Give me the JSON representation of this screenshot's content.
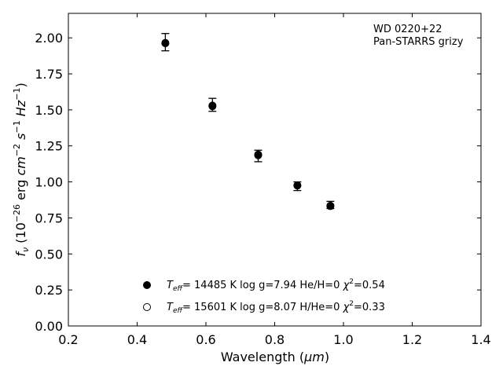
{
  "chart_data": {
    "type": "scatter",
    "xlabel_prefix": "Wavelength (",
    "xlabel_unit": "μm",
    "xlabel_suffix": ")",
    "ylabel_parts": [
      "f",
      "ν",
      " (10",
      "−26",
      " erg ",
      "cm",
      "−2",
      " ",
      "s",
      "−1",
      " ",
      "Hz",
      "−1",
      ")"
    ],
    "xlim": [
      0.2,
      1.4
    ],
    "ylim": [
      0.0,
      2.17
    ],
    "xticks": [
      0.2,
      0.4,
      0.6,
      0.8,
      1.0,
      1.2,
      1.4
    ],
    "xtick_labels": [
      "0.2",
      "0.4",
      "0.6",
      "0.8",
      "1.0",
      "1.2",
      "1.4"
    ],
    "yticks": [
      0.0,
      0.25,
      0.5,
      0.75,
      1.0,
      1.25,
      1.5,
      1.75,
      2.0
    ],
    "ytick_labels": [
      "0.00",
      "0.25",
      "0.50",
      "0.75",
      "1.00",
      "1.25",
      "1.50",
      "1.75",
      "2.00"
    ],
    "grid": false,
    "annotation_lines": [
      "WD 0220+22",
      "Pan-STARRS grizy"
    ],
    "observed": {
      "x": [
        0.482,
        0.619,
        0.752,
        0.866,
        0.962
      ],
      "y": [
        1.97,
        1.535,
        1.18,
        0.97,
        0.84
      ],
      "err": [
        0.06,
        0.045,
        0.04,
        0.03,
        0.025
      ]
    },
    "series": [
      {
        "name": "Teff= 14485 K  log g=7.94  He/H=0  χ2=0.54",
        "name_parts": [
          "T",
          "eff",
          "= 14485 K  log g=7.94  He/H=0  ",
          "χ",
          "2",
          "=0.54"
        ],
        "marker": "filled",
        "x": [
          0.482,
          0.619,
          0.752,
          0.866,
          0.962
        ],
        "y": [
          1.965,
          1.53,
          1.19,
          0.975,
          0.835
        ]
      },
      {
        "name": "Teff= 15601 K  log g=8.07  H/He=0  χ2=0.33",
        "name_parts": [
          "T",
          "eff",
          "= 15601 K  log g=8.07  H/He=0  ",
          "χ",
          "2",
          "=0.33"
        ],
        "marker": "open",
        "x": [
          0.482,
          0.619,
          0.752,
          0.866,
          0.962
        ],
        "y": [
          1.962,
          1.525,
          1.185,
          0.975,
          0.832
        ]
      }
    ],
    "legend_position": "lower-center",
    "colors": {
      "marker": "#000000",
      "axis": "#000000"
    }
  }
}
